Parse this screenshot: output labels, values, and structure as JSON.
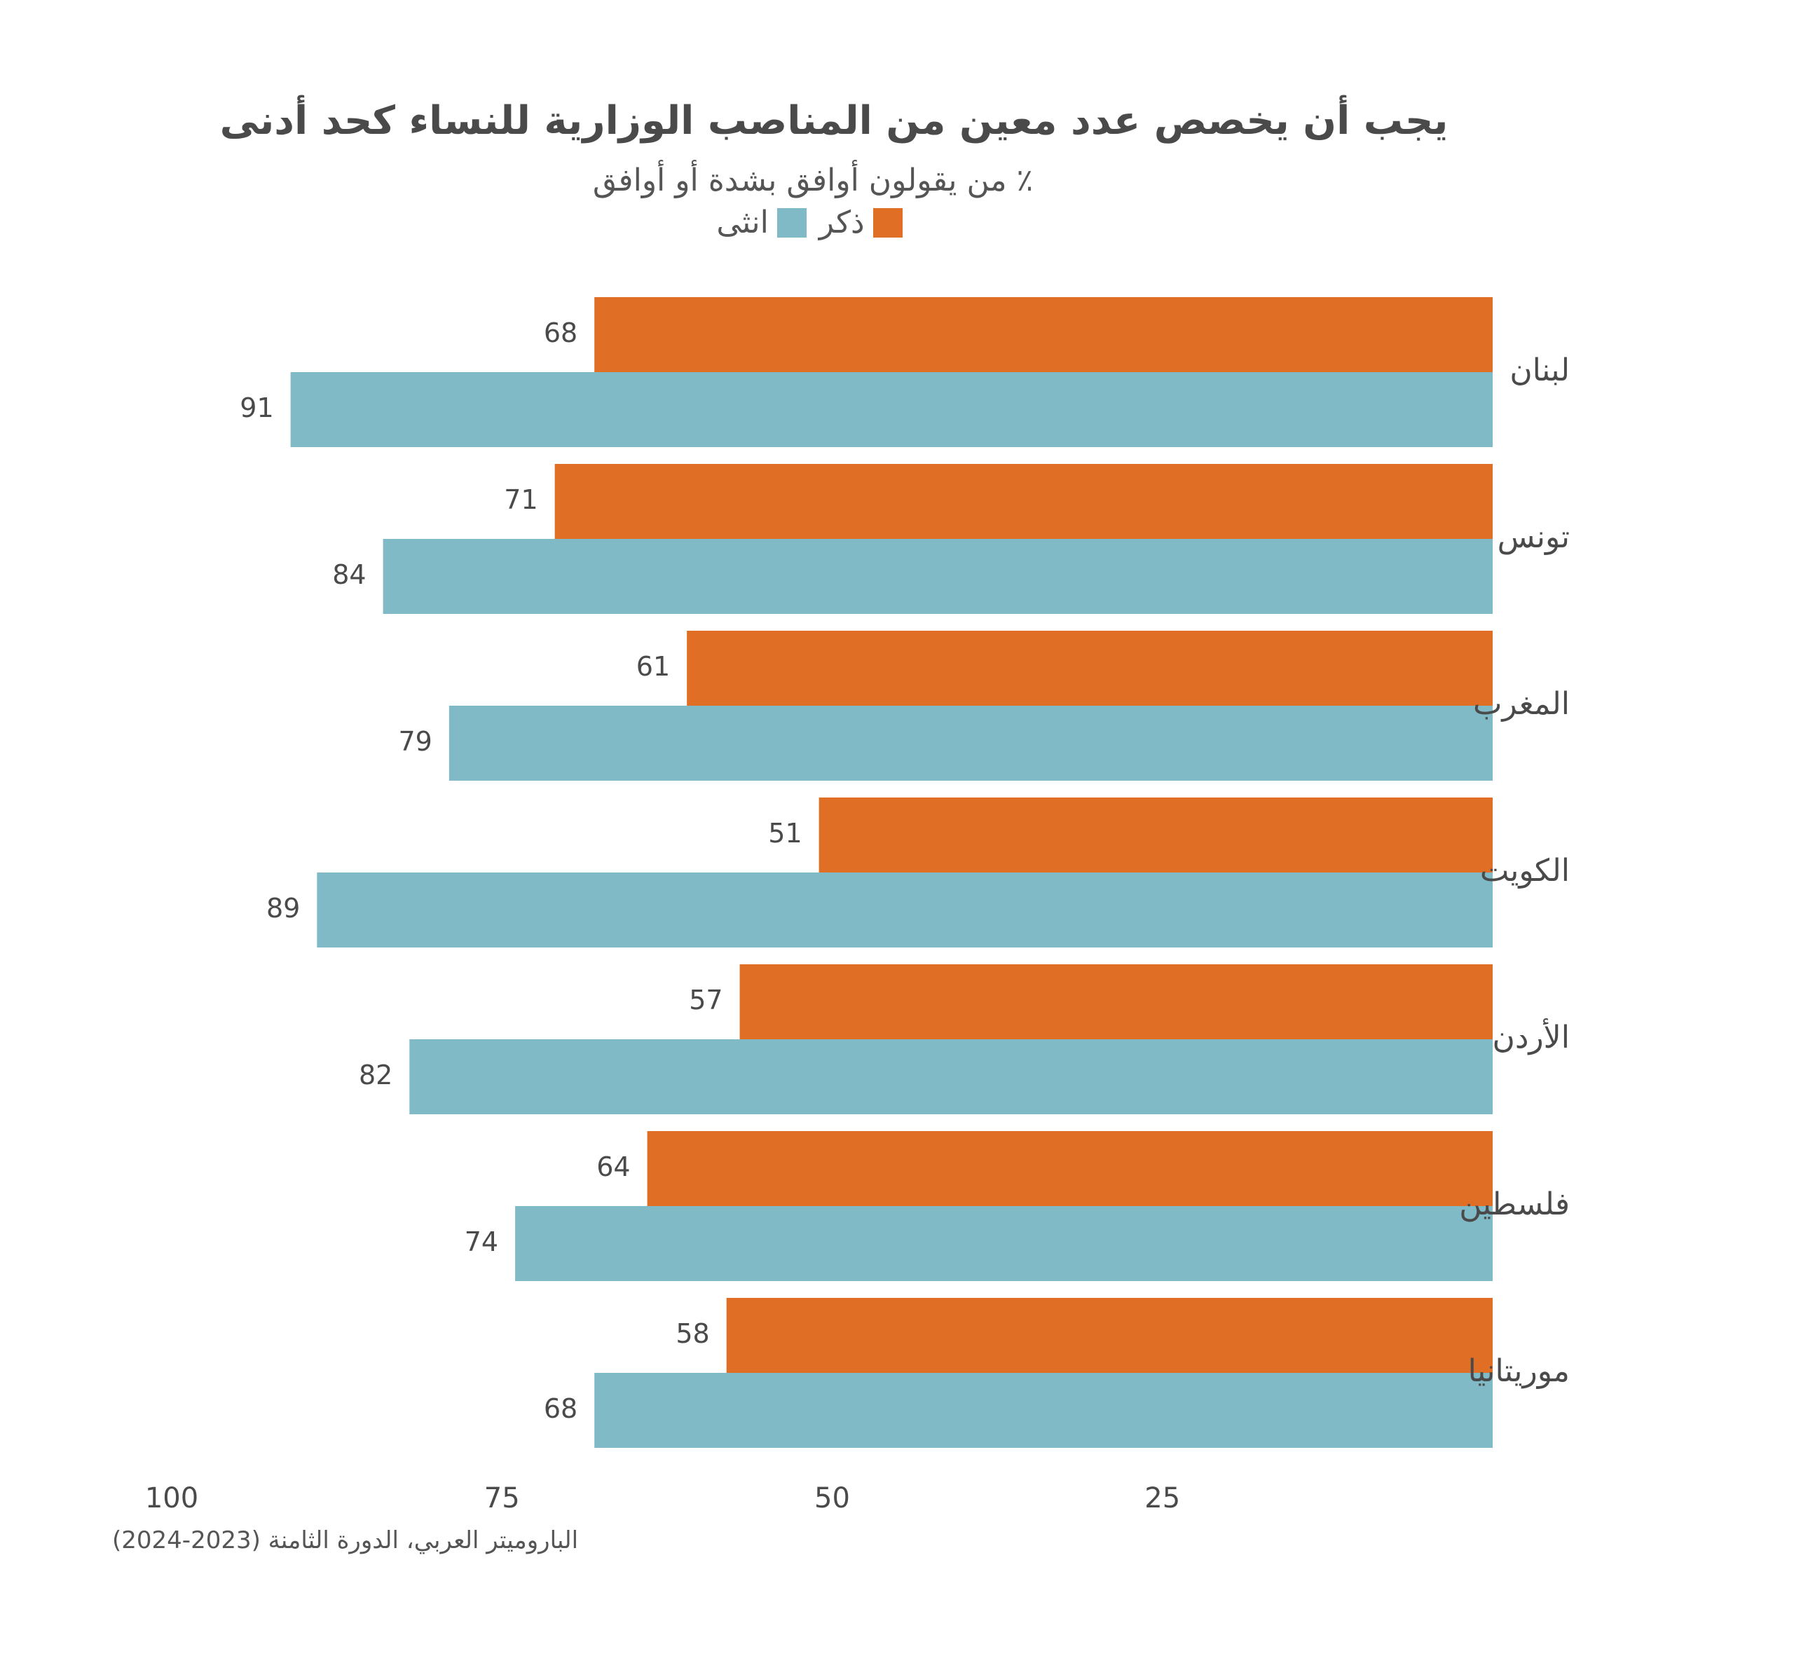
{
  "chart_data": {
    "type": "bar",
    "orientation": "horizontal",
    "x_axis_reversed": true,
    "title": "يجب أن يخصص عدد معين من المناصب الوزارية للنساء كحد أدنى",
    "subtitle": "٪ من يقولون أوافق بشدة أو أوافق",
    "categories": [
      "لبنان",
      "تونس",
      "المغرب",
      "الكويت",
      "الأردن",
      "فلسطين",
      "موريتانيا"
    ],
    "series": [
      {
        "name": "ذكر",
        "color": "#e06e24",
        "values": [
          68,
          71,
          61,
          51,
          57,
          64,
          58
        ]
      },
      {
        "name": "انثى",
        "color": "#80bac6",
        "values": [
          91,
          84,
          79,
          89,
          82,
          74,
          68
        ]
      }
    ],
    "xlim": [
      0,
      100
    ],
    "xticks": [
      100,
      75,
      50,
      25
    ],
    "grid": false,
    "legend_position": "top"
  },
  "source": "الباروميتر العربي، الدورة الثامنة (2023-2024)"
}
